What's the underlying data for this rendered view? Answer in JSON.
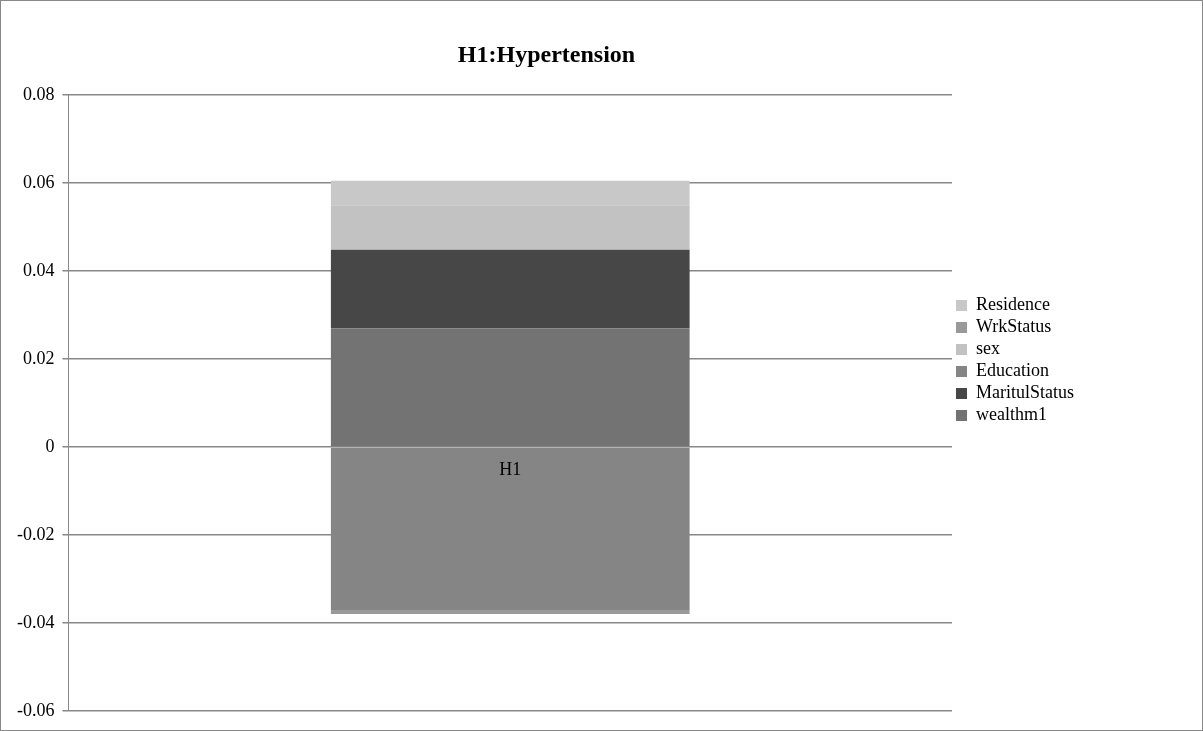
{
  "chart_data": {
    "type": "bar",
    "title": "H1:Hypertension",
    "categories": [
      "H1"
    ],
    "stacked": true,
    "series": [
      {
        "name": "wealthm1",
        "color": "#737373",
        "values": [
          0.027
        ]
      },
      {
        "name": "MaritulStatus",
        "color": "#474747",
        "values": [
          0.0178
        ]
      },
      {
        "name": "Education",
        "color": "#858585",
        "values": [
          -0.037
        ]
      },
      {
        "name": "sex",
        "color": "#c2c2c2",
        "values": [
          0.0101
        ]
      },
      {
        "name": "WrkStatus",
        "color": "#999999",
        "values": [
          -0.0009
        ]
      },
      {
        "name": "Residence",
        "color": "#c8c8c8",
        "values": [
          0.0056
        ]
      }
    ],
    "ylim": [
      -0.06,
      0.08
    ],
    "yticks": [
      -0.06,
      -0.04,
      -0.02,
      0,
      0.02,
      0.04,
      0.06,
      0.08
    ],
    "grid": "y",
    "legend": "right"
  }
}
